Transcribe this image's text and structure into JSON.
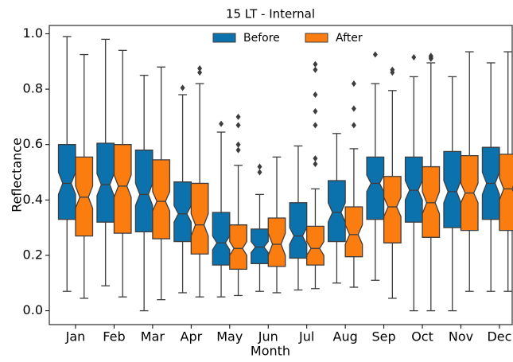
{
  "chart_data": {
    "type": "box",
    "title": "15 LT - Internal",
    "x_label": "Month",
    "y_label": "Reflectance",
    "categories": [
      "Jan",
      "Feb",
      "Mar",
      "Apr",
      "May",
      "Jun",
      "Jul",
      "Aug",
      "Sep",
      "Oct",
      "Nov",
      "Dec"
    ],
    "ylim": [
      -0.05,
      1.03
    ],
    "yticks": [
      {
        "value": 0,
        "label": "0.0"
      },
      0.2,
      0.4,
      0.6,
      0.8,
      {
        "value": 1,
        "label": "1.0"
      }
    ],
    "legend": "upper center",
    "series": [
      {
        "name": "Before",
        "color": "#0b72ad",
        "boxes": [
          {
            "whislo": 0.07,
            "q1": 0.33,
            "med": 0.46,
            "q3": 0.6,
            "whishi": 0.99,
            "notch": [
              0.42,
              0.5
            ],
            "fliers": []
          },
          {
            "whislo": 0.09,
            "q1": 0.32,
            "med": 0.455,
            "q3": 0.605,
            "whishi": 0.98,
            "notch": [
              0.415,
              0.495
            ],
            "fliers": []
          },
          {
            "whislo": 0.0,
            "q1": 0.285,
            "med": 0.42,
            "q3": 0.58,
            "whishi": 0.85,
            "notch": [
              0.38,
              0.46
            ],
            "fliers": []
          },
          {
            "whislo": 0.065,
            "q1": 0.25,
            "med": 0.35,
            "q3": 0.465,
            "whishi": 0.78,
            "notch": [
              0.32,
              0.38
            ],
            "fliers": [
              0.805
            ]
          },
          {
            "whislo": 0.05,
            "q1": 0.165,
            "med": 0.245,
            "q3": 0.355,
            "whishi": 0.645,
            "notch": [
              0.22,
              0.27
            ],
            "fliers": [
              0.675
            ]
          },
          {
            "whislo": 0.07,
            "q1": 0.17,
            "med": 0.23,
            "q3": 0.295,
            "whishi": 0.42,
            "notch": [
              0.21,
              0.25
            ],
            "fliers": [
              0.5,
              0.52
            ]
          },
          {
            "whislo": 0.075,
            "q1": 0.19,
            "med": 0.27,
            "q3": 0.39,
            "whishi": 0.595,
            "notch": [
              0.24,
              0.3
            ],
            "fliers": []
          },
          {
            "whislo": 0.1,
            "q1": 0.25,
            "med": 0.355,
            "q3": 0.47,
            "whishi": 0.64,
            "notch": [
              0.32,
              0.39
            ],
            "fliers": []
          },
          {
            "whislo": 0.11,
            "q1": 0.33,
            "med": 0.46,
            "q3": 0.555,
            "whishi": 0.82,
            "notch": [
              0.43,
              0.49
            ],
            "fliers": [
              0.925
            ]
          },
          {
            "whislo": 0.0,
            "q1": 0.32,
            "med": 0.435,
            "q3": 0.555,
            "whishi": 0.845,
            "notch": [
              0.4,
              0.47
            ],
            "fliers": [
              0.915
            ]
          },
          {
            "whislo": 0.0,
            "q1": 0.3,
            "med": 0.43,
            "q3": 0.575,
            "whishi": 0.845,
            "notch": [
              0.39,
              0.47
            ],
            "fliers": []
          },
          {
            "whislo": 0.07,
            "q1": 0.33,
            "med": 0.46,
            "q3": 0.59,
            "whishi": 0.895,
            "notch": [
              0.42,
              0.5
            ],
            "fliers": []
          }
        ]
      },
      {
        "name": "After",
        "color": "#fb7d10",
        "boxes": [
          {
            "whislo": 0.045,
            "q1": 0.27,
            "med": 0.41,
            "q3": 0.555,
            "whishi": 0.925,
            "notch": [
              0.37,
              0.45
            ],
            "fliers": []
          },
          {
            "whislo": 0.05,
            "q1": 0.28,
            "med": 0.45,
            "q3": 0.6,
            "whishi": 0.94,
            "notch": [
              0.41,
              0.49
            ],
            "fliers": []
          },
          {
            "whislo": 0.04,
            "q1": 0.26,
            "med": 0.395,
            "q3": 0.545,
            "whishi": 0.88,
            "notch": [
              0.36,
              0.43
            ],
            "fliers": []
          },
          {
            "whislo": 0.05,
            "q1": 0.205,
            "med": 0.31,
            "q3": 0.46,
            "whishi": 0.82,
            "notch": [
              0.27,
              0.35
            ],
            "fliers": [
              0.86,
              0.875
            ]
          },
          {
            "whislo": 0.055,
            "q1": 0.15,
            "med": 0.225,
            "q3": 0.31,
            "whishi": 0.525,
            "notch": [
              0.2,
              0.25
            ],
            "fliers": [
              0.58,
              0.6,
              0.67,
              0.7
            ]
          },
          {
            "whislo": 0.065,
            "q1": 0.16,
            "med": 0.24,
            "q3": 0.335,
            "whishi": 0.555,
            "notch": [
              0.2,
              0.28
            ],
            "fliers": []
          },
          {
            "whislo": 0.08,
            "q1": 0.165,
            "med": 0.225,
            "q3": 0.305,
            "whishi": 0.44,
            "notch": [
              0.2,
              0.25
            ],
            "fliers": [
              0.53,
              0.55,
              0.67,
              0.72,
              0.78,
              0.87,
              0.89
            ]
          },
          {
            "whislo": 0.085,
            "q1": 0.195,
            "med": 0.275,
            "q3": 0.375,
            "whishi": 0.585,
            "notch": [
              0.24,
              0.31
            ],
            "fliers": [
              0.67,
              0.73,
              0.82
            ]
          },
          {
            "whislo": 0.045,
            "q1": 0.245,
            "med": 0.375,
            "q3": 0.485,
            "whishi": 0.795,
            "notch": [
              0.34,
              0.41
            ],
            "fliers": [
              0.86,
              0.87
            ]
          },
          {
            "whislo": 0.0,
            "q1": 0.265,
            "med": 0.39,
            "q3": 0.52,
            "whishi": 0.895,
            "notch": [
              0.35,
              0.43
            ],
            "fliers": [
              0.91,
              0.915,
              0.92
            ]
          },
          {
            "whislo": 0.07,
            "q1": 0.29,
            "med": 0.425,
            "q3": 0.56,
            "whishi": 0.935,
            "notch": [
              0.39,
              0.46
            ],
            "fliers": []
          },
          {
            "whislo": 0.07,
            "q1": 0.29,
            "med": 0.44,
            "q3": 0.565,
            "whishi": 0.935,
            "notch": [
              0.4,
              0.48
            ],
            "fliers": []
          }
        ]
      }
    ]
  }
}
